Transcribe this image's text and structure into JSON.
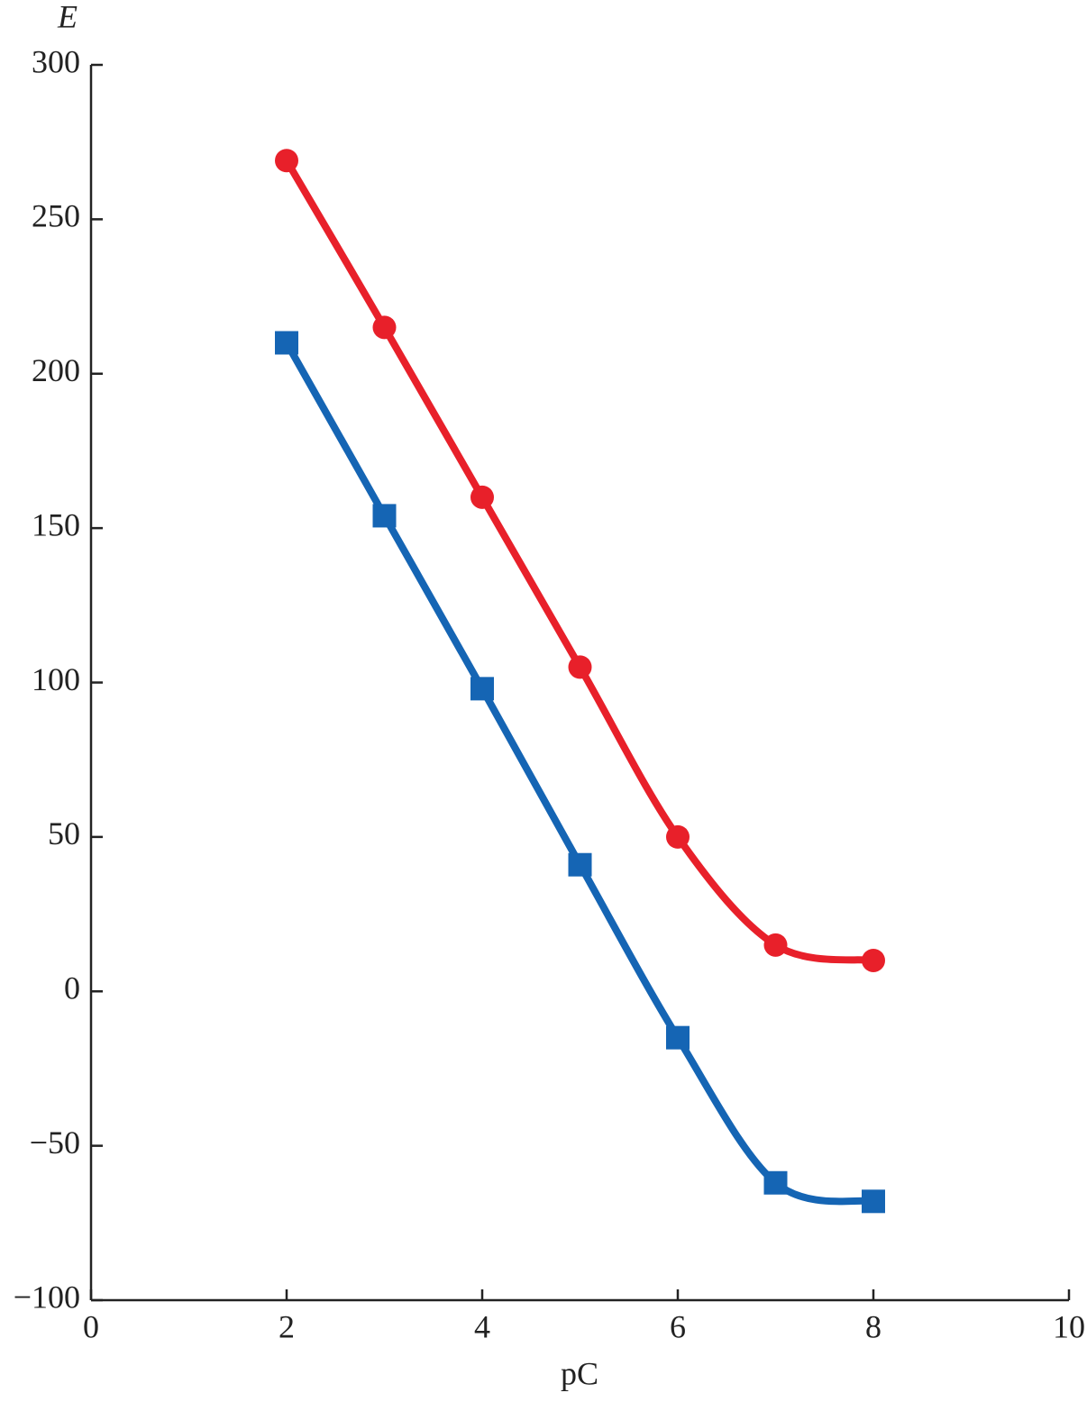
{
  "chart_data": {
    "type": "line",
    "x_label": "pC",
    "y_label": "E",
    "x": [
      2,
      3,
      4,
      5,
      6,
      7,
      8
    ],
    "series": [
      {
        "color": "#e8202a",
        "marker": "circle",
        "values": [
          269,
          215,
          160,
          105,
          50,
          15,
          10
        ]
      },
      {
        "color": "#1565b4",
        "marker": "square",
        "values": [
          210,
          154,
          98,
          41,
          -15,
          -62,
          -68
        ]
      }
    ],
    "xlim": [
      0,
      10
    ],
    "xticks": [
      0,
      2,
      4,
      6,
      8,
      10
    ],
    "ylim": [
      -100,
      300
    ],
    "yticks": [
      {
        "value": -100,
        "label": "−100"
      },
      {
        "value": -50,
        "label": "−50"
      },
      0,
      50,
      100,
      150,
      200,
      250,
      300
    ],
    "grid": false,
    "smooth": true
  }
}
